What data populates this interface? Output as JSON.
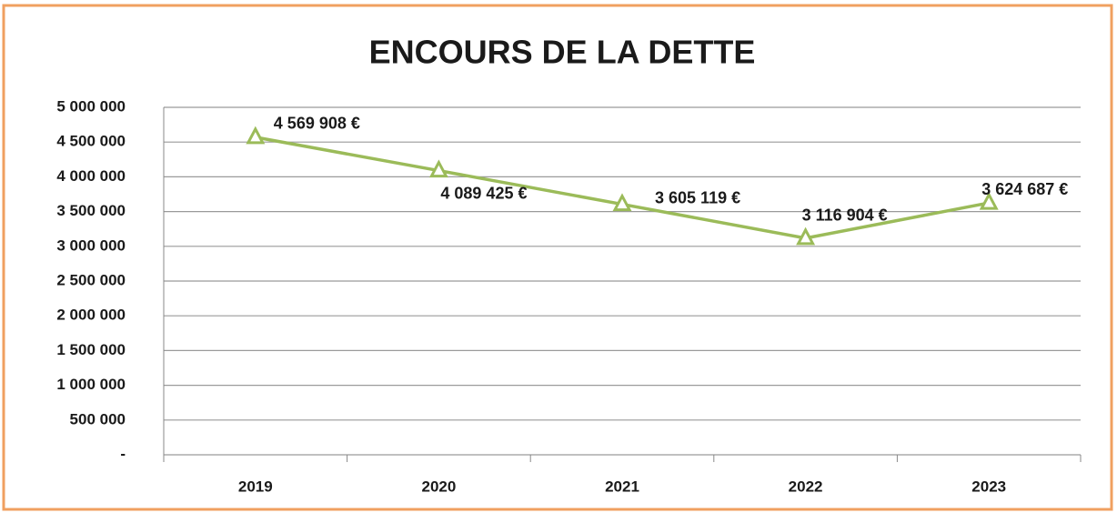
{
  "chart_data": {
    "type": "line",
    "title": "ENCOURS DE LA DETTE",
    "categories": [
      "2019",
      "2020",
      "2021",
      "2022",
      "2023"
    ],
    "series": [
      {
        "name": null,
        "color": "#9bbb59",
        "values": [
          4569908,
          4089425,
          3605119,
          3116904,
          3624687
        ],
        "value_labels": [
          "4 569 908 €",
          "4 089 425 €",
          "3 605 119 €",
          "3 116 904 €",
          "3 624 687 €"
        ]
      }
    ],
    "ylim": [
      0,
      5000000
    ],
    "yticks": [
      {
        "value": 0,
        "label": "-"
      },
      {
        "value": 500000,
        "label": "500 000"
      },
      {
        "value": 1000000,
        "label": "1 000 000"
      },
      {
        "value": 1500000,
        "label": "1 500 000"
      },
      {
        "value": 2000000,
        "label": "2 000 000"
      },
      {
        "value": 2500000,
        "label": "2 500 000"
      },
      {
        "value": 3000000,
        "label": "3 000 000"
      },
      {
        "value": 3500000,
        "label": "3 500 000"
      },
      {
        "value": 4000000,
        "label": "4 000 000"
      },
      {
        "value": 4500000,
        "label": "4 500 000"
      },
      {
        "value": 5000000,
        "label": "5 000 000"
      }
    ],
    "grid": true
  }
}
